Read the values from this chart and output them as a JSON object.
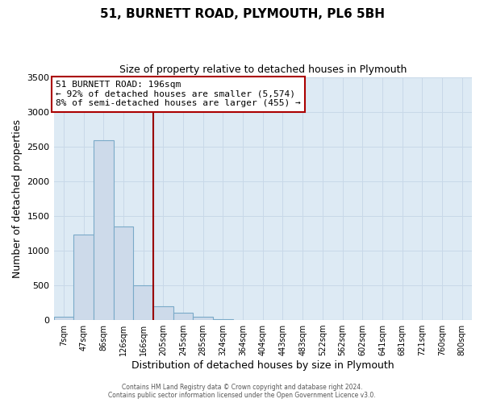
{
  "title": "51, BURNETT ROAD, PLYMOUTH, PL6 5BH",
  "subtitle": "Size of property relative to detached houses in Plymouth",
  "xlabel": "Distribution of detached houses by size in Plymouth",
  "ylabel": "Number of detached properties",
  "bar_labels": [
    "7sqm",
    "47sqm",
    "86sqm",
    "126sqm",
    "166sqm",
    "205sqm",
    "245sqm",
    "285sqm",
    "324sqm",
    "364sqm",
    "404sqm",
    "443sqm",
    "483sqm",
    "522sqm",
    "562sqm",
    "602sqm",
    "641sqm",
    "681sqm",
    "721sqm",
    "760sqm",
    "800sqm"
  ],
  "bar_values": [
    45,
    1230,
    2590,
    1350,
    500,
    200,
    110,
    45,
    15,
    5,
    2,
    1,
    0,
    0,
    0,
    0,
    0,
    0,
    0,
    0,
    0
  ],
  "bar_color": "#cddaea",
  "bar_edge_color": "#7aaac8",
  "vline_color": "#990000",
  "annotation_title": "51 BURNETT ROAD: 196sqm",
  "annotation_line1": "← 92% of detached houses are smaller (5,574)",
  "annotation_line2": "8% of semi-detached houses are larger (455) →",
  "annotation_box_edge_color": "#aa0000",
  "ylim": [
    0,
    3500
  ],
  "yticks": [
    0,
    500,
    1000,
    1500,
    2000,
    2500,
    3000,
    3500
  ],
  "grid_color": "#c8d8e8",
  "plot_bg": "#ddeaf4",
  "fig_bg": "#ffffff",
  "footer_line1": "Contains HM Land Registry data © Crown copyright and database right 2024.",
  "footer_line2": "Contains public sector information licensed under the Open Government Licence v3.0."
}
